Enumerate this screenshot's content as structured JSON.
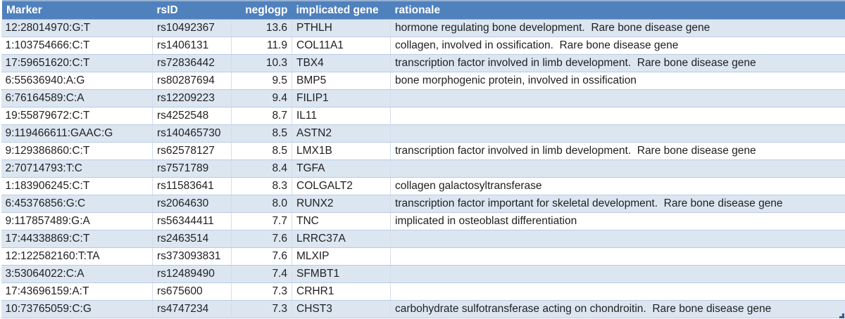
{
  "table": {
    "columns": [
      {
        "key": "marker",
        "label": "Marker"
      },
      {
        "key": "rsid",
        "label": "rsID"
      },
      {
        "key": "neglogp",
        "label": "neglogp"
      },
      {
        "key": "gene",
        "label": "implicated gene"
      },
      {
        "key": "rationale",
        "label": "rationale"
      }
    ],
    "rows": [
      {
        "marker": "12:28014970:G:T",
        "rsid": "rs10492367",
        "neglogp": "13.6",
        "gene": "PTHLH",
        "rationale": "hormone regulating bone development.  Rare bone disease gene"
      },
      {
        "marker": "1:103754666:C:T",
        "rsid": "rs1406131",
        "neglogp": "11.9",
        "gene": "COL11A1",
        "rationale": "collagen, involved in ossification.  Rare bone disease gene"
      },
      {
        "marker": "17:59651620:C:T",
        "rsid": "rs72836442",
        "neglogp": "10.3",
        "gene": "TBX4",
        "rationale": "transcription factor involved in limb development.  Rare bone disease gene"
      },
      {
        "marker": "6:55636940:A:G",
        "rsid": "rs80287694",
        "neglogp": "9.5",
        "gene": "BMP5",
        "rationale": "bone morphogenic protein, involved in ossification"
      },
      {
        "marker": "6:76164589:C:A",
        "rsid": "rs12209223",
        "neglogp": "9.4",
        "gene": "FILIP1",
        "rationale": ""
      },
      {
        "marker": "19:55879672:C:T",
        "rsid": "rs4252548",
        "neglogp": "8.7",
        "gene": "IL11",
        "rationale": ""
      },
      {
        "marker": "9:119466611:GAAC:G",
        "rsid": "rs140465730",
        "neglogp": "8.5",
        "gene": "ASTN2",
        "rationale": ""
      },
      {
        "marker": "9:129386860:C:T",
        "rsid": "rs62578127",
        "neglogp": "8.5",
        "gene": "LMX1B",
        "rationale": "transcription factor involved in limb development.  Rare bone disease gene"
      },
      {
        "marker": "2:70714793:T:C",
        "rsid": "rs7571789",
        "neglogp": "8.4",
        "gene": "TGFA",
        "rationale": ""
      },
      {
        "marker": "1:183906245:C:T",
        "rsid": "rs11583641",
        "neglogp": "8.3",
        "gene": "COLGALT2",
        "rationale": "collagen galactosyltransferase"
      },
      {
        "marker": "6:45376856:G:C",
        "rsid": "rs2064630",
        "neglogp": "8.0",
        "gene": "RUNX2",
        "rationale": "transcription factor important for skeletal development.  Rare bone disease gene"
      },
      {
        "marker": "9:117857489:G:A",
        "rsid": "rs56344411",
        "neglogp": "7.7",
        "gene": "TNC",
        "rationale": "implicated in osteoblast differentiation"
      },
      {
        "marker": "17:44338869:C:T",
        "rsid": "rs2463514",
        "neglogp": "7.6",
        "gene": "LRRC37A",
        "rationale": ""
      },
      {
        "marker": "12:122582160:T:TA",
        "rsid": "rs373093831",
        "neglogp": "7.6",
        "gene": "MLXIP",
        "rationale": ""
      },
      {
        "marker": "3:53064022:C:A",
        "rsid": "rs12489490",
        "neglogp": "7.4",
        "gene": "SFMBT1",
        "rationale": ""
      },
      {
        "marker": "17:43696159:A:T",
        "rsid": "rs675600",
        "neglogp": "7.3",
        "gene": "CRHR1",
        "rationale": ""
      },
      {
        "marker": "10:73765059:C:G",
        "rsid": "rs4747234",
        "neglogp": "7.3",
        "gene": "CHST3",
        "rationale": "carbohydrate sulfotransferase acting on chondroitin.  Rare bone disease gene"
      }
    ]
  },
  "colors": {
    "header_bg": "#4f81bd",
    "header_text": "#ffffff",
    "band_row_bg": "#dce6f1",
    "plain_row_bg": "#ffffff",
    "row_border": "#b8cce4",
    "resize_handle": "#365f91"
  }
}
